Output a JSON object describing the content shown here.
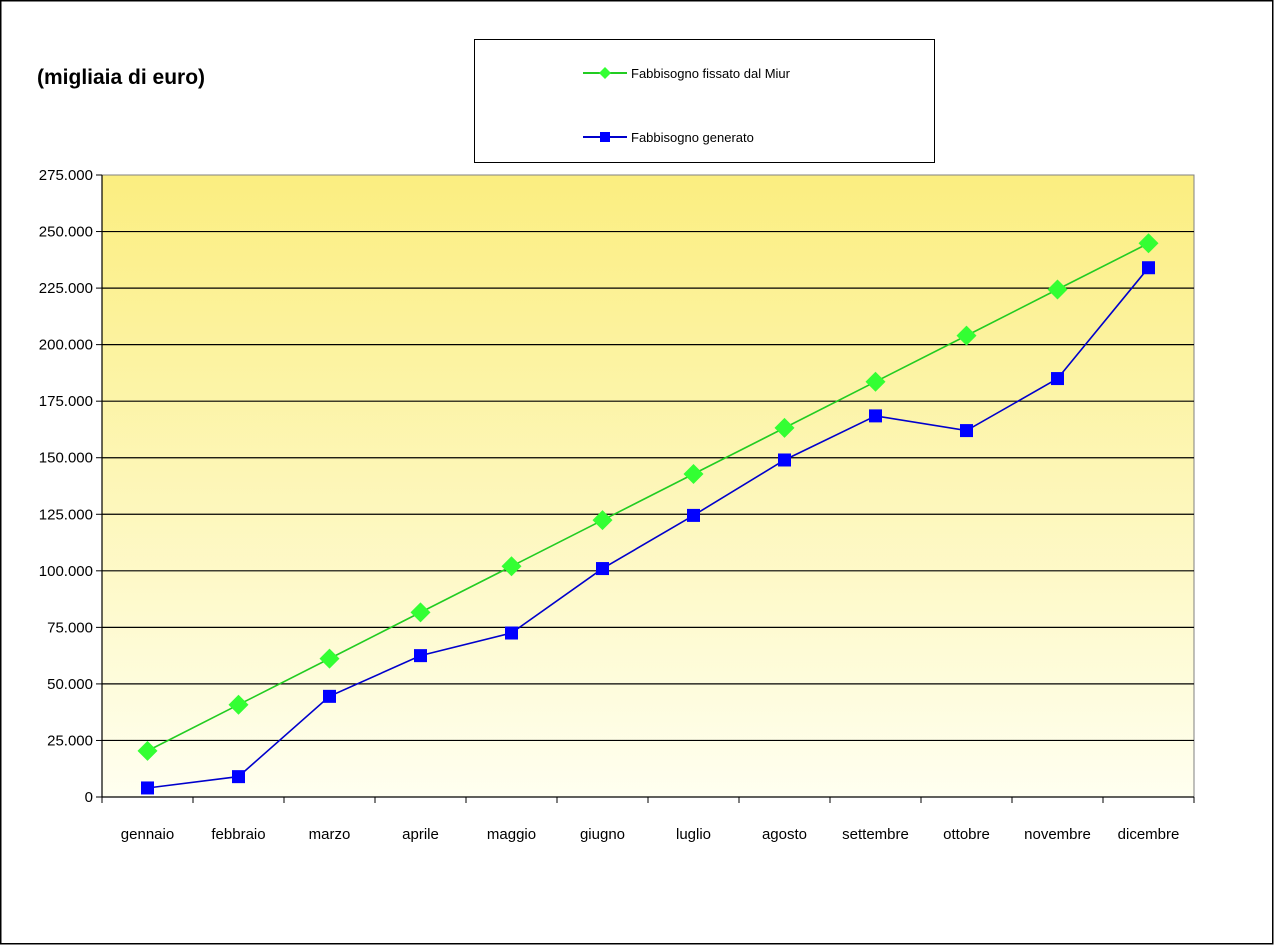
{
  "chart_data": {
    "type": "line",
    "unit_label": "(migliaia di euro)",
    "categories": [
      "gennaio",
      "febbraio",
      "marzo",
      "aprile",
      "maggio",
      "giugno",
      "luglio",
      "agosto",
      "settembre",
      "ottobre",
      "novembre",
      "dicembre"
    ],
    "series": [
      {
        "name": "Fabbisogno fissato dal Miur",
        "color": "#33ff33",
        "line_color": "#22cc22",
        "marker": "diamond",
        "values": [
          20400,
          40800,
          61200,
          81600,
          102000,
          122400,
          142800,
          163200,
          183600,
          204000,
          224400,
          244800
        ]
      },
      {
        "name": "Fabbisogno generato",
        "color": "#0000ff",
        "line_color": "#0000cc",
        "marker": "square",
        "values": [
          4000,
          9000,
          44500,
          62500,
          72500,
          101000,
          124500,
          149000,
          168500,
          162000,
          185000,
          234000
        ]
      }
    ],
    "y_ticks": [
      "0",
      "25.000",
      "50.000",
      "75.000",
      "100.000",
      "125.000",
      "150.000",
      "175.000",
      "200.000",
      "225.000",
      "250.000",
      "275.000"
    ],
    "ylim": [
      0,
      275000
    ],
    "grid": "horizontal",
    "legend_position": "top-center",
    "plot_background": [
      "#fbee80",
      "#fffff0"
    ]
  }
}
